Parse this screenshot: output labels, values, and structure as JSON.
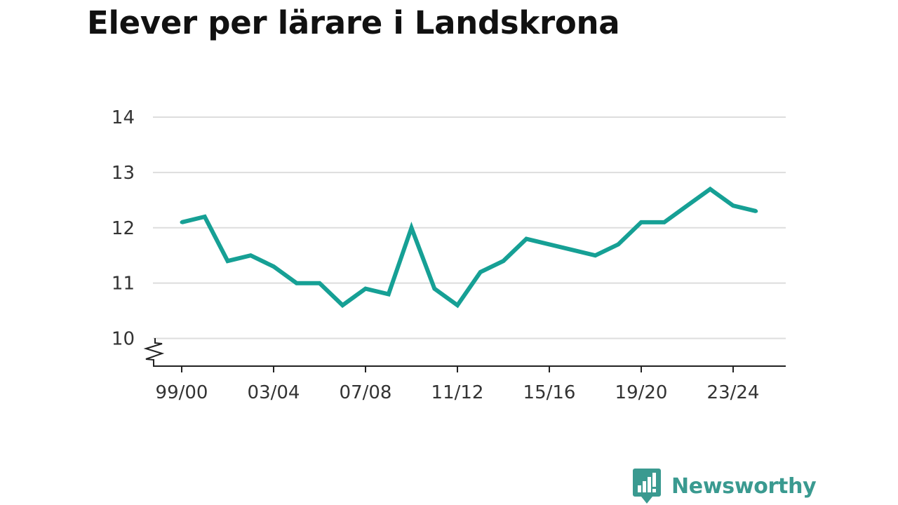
{
  "chart_data": {
    "type": "line",
    "title": "Elever per lärare i Landskrona",
    "xlabel": "",
    "ylabel": "",
    "categories": [
      "99/00",
      "00/01",
      "01/02",
      "02/03",
      "03/04",
      "04/05",
      "05/06",
      "06/07",
      "07/08",
      "08/09",
      "09/10",
      "10/11",
      "11/12",
      "12/13",
      "13/14",
      "14/15",
      "15/16",
      "16/17",
      "17/18",
      "18/19",
      "19/20",
      "20/21",
      "21/22",
      "22/23",
      "23/24",
      "24/25"
    ],
    "x_tick_labels": [
      "99/00",
      "03/04",
      "07/08",
      "11/12",
      "15/16",
      "19/20",
      "23/24"
    ],
    "series": [
      {
        "values": [
          12.1,
          12.2,
          11.4,
          11.5,
          11.3,
          11.0,
          11.0,
          10.6,
          10.9,
          10.8,
          12.0,
          10.9,
          10.6,
          11.2,
          11.4,
          11.8,
          11.7,
          11.6,
          11.5,
          11.7,
          12.1,
          12.1,
          12.4,
          12.7,
          12.4,
          12.3
        ],
        "color": "#16a095"
      }
    ],
    "y_ticks": [
      10,
      11,
      12,
      13,
      14
    ],
    "ylim": [
      9.5,
      14
    ],
    "y_axis_break": true,
    "grid": true
  },
  "branding": {
    "name": "Newsworthy",
    "icon": "newsworthy-logo-icon",
    "color": "#3a9a90"
  }
}
